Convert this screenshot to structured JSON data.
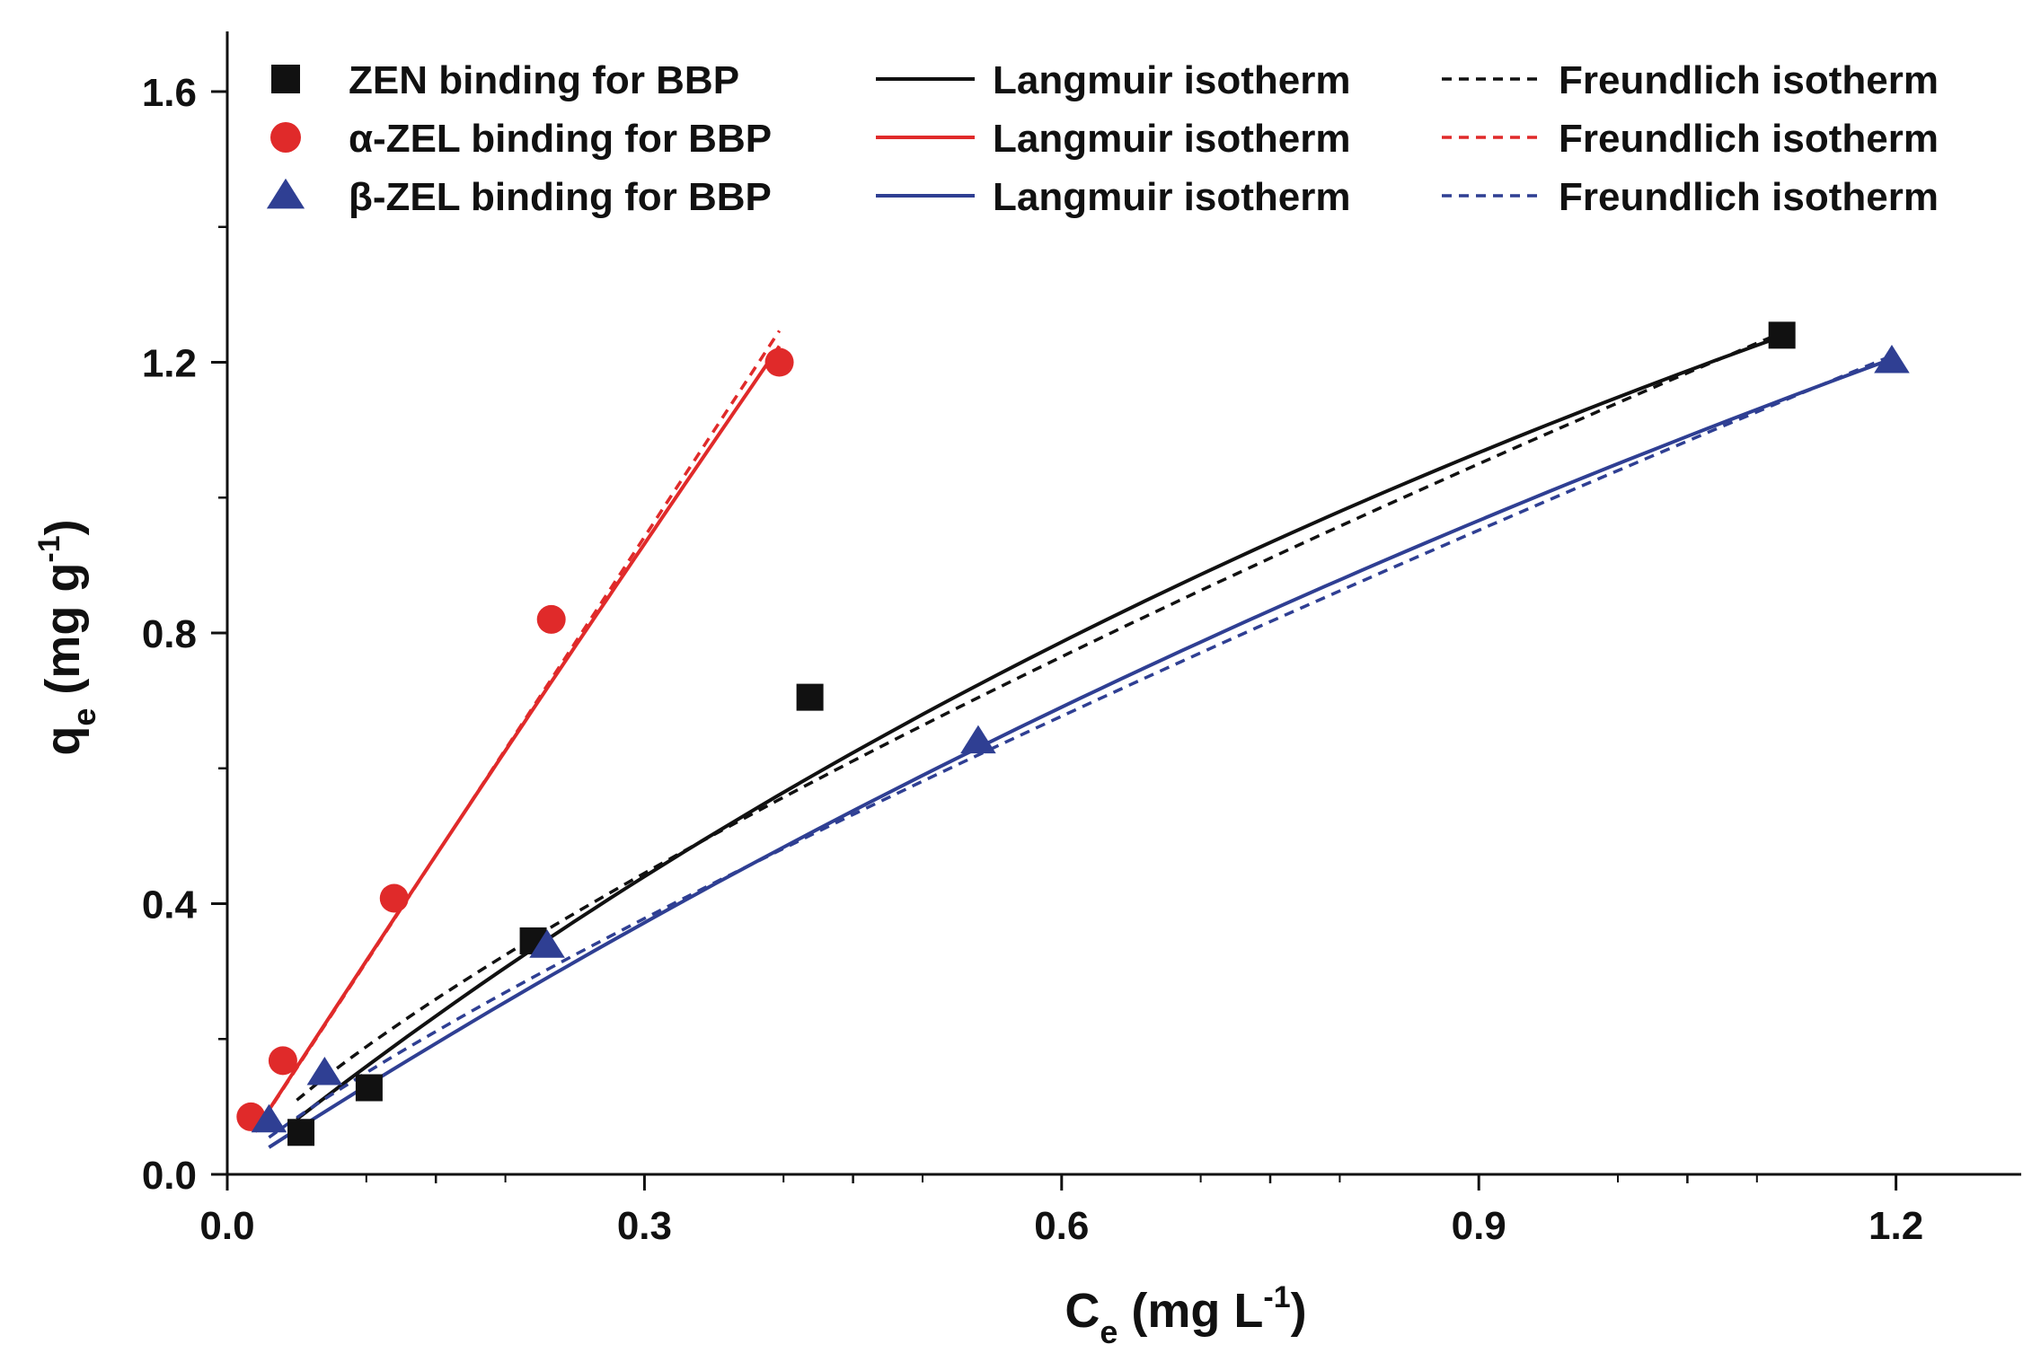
{
  "chart_data": {
    "type": "scatter",
    "title": "",
    "xlabel": "C",
    "xlabel_sub": "e",
    "xlabel_unit_pre": " (mg L",
    "xlabel_sup": "-1",
    "xlabel_unit_post": ")",
    "ylabel": "q",
    "ylabel_sub": "e",
    "ylabel_unit_pre": " (mg g",
    "ylabel_sup": "-1",
    "ylabel_unit_post": ")",
    "xlim": [
      0,
      1.29
    ],
    "ylim": [
      0,
      1.7
    ],
    "xticks": [
      "0.0",
      "0.3",
      "0.6",
      "0.9",
      "1.2"
    ],
    "xtick_values": [
      0,
      0.3,
      0.6,
      0.9,
      1.2
    ],
    "yticks": [
      "0.0",
      "0.4",
      "0.8",
      "1.2",
      "1.6"
    ],
    "ytick_values": [
      0,
      0.4,
      0.8,
      1.2,
      1.6
    ],
    "legend_position": "top",
    "series": [
      {
        "name": "ZEN binding for BBP",
        "marker": "square",
        "color": "#111111",
        "points": [
          [
            0.053,
            0.062
          ],
          [
            0.102,
            0.128
          ],
          [
            0.22,
            0.345
          ],
          [
            0.419,
            0.705
          ],
          [
            1.118,
            1.24
          ]
        ],
        "langmuir_label": "Langmuir isotherm",
        "freundlich_label": "Freundlich isotherm",
        "langmuir": {
          "qmax": 3.7,
          "K": 0.45,
          "xmin": 0.05,
          "xmax": 1.11
        },
        "freundlich": {
          "Kf": 1.14,
          "n": 1.28,
          "xmin": 0.05,
          "xmax": 1.11
        }
      },
      {
        "name": "α-ZEL binding for BBP",
        "marker": "circle",
        "color": "#e02a2a",
        "points": [
          [
            0.017,
            0.085
          ],
          [
            0.04,
            0.168
          ],
          [
            0.12,
            0.408
          ],
          [
            0.233,
            0.82
          ],
          [
            0.397,
            1.2
          ]
        ],
        "langmuir_label": "Langmuir isotherm",
        "freundlich_label": "Freundlich isotherm",
        "langmuir": {
          "qmax": 40,
          "K": 0.0795,
          "xmin": 0.02,
          "xmax": 0.397
        },
        "freundlich": {
          "Kf": 3.14,
          "n": 1.0,
          "xmin": 0.02,
          "xmax": 0.397
        }
      },
      {
        "name": "β-ZEL binding for BBP",
        "marker": "triangle",
        "color": "#2f3f93",
        "points": [
          [
            0.03,
            0.08
          ],
          [
            0.07,
            0.15
          ],
          [
            0.23,
            0.338
          ],
          [
            0.54,
            0.64
          ],
          [
            1.197,
            1.202
          ]
        ],
        "langmuir_label": "Langmuir isotherm",
        "freundlich_label": "Freundlich isotherm",
        "langmuir": {
          "qmax": 4.8,
          "K": 0.28,
          "xmin": 0.03,
          "xmax": 1.197
        },
        "freundlich": {
          "Kf": 1.04,
          "n": 1.19,
          "xmin": 0.03,
          "xmax": 1.197
        }
      }
    ]
  }
}
